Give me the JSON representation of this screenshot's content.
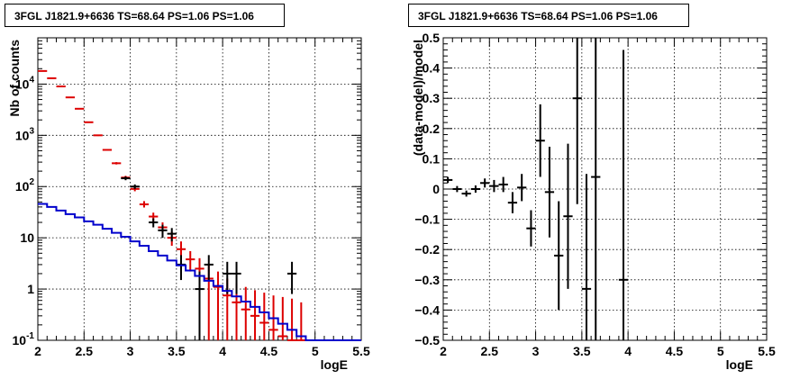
{
  "left_panel": {
    "title": "3FGL J1821.9+6636 TS=68.64 PS=1.06 PS=1.06"
  },
  "right_panel": {
    "title": "3FGL J1821.9+6636 TS=68.64 PS=1.06 PS=1.06"
  },
  "colors": {
    "data_black": "#000000",
    "data_red": "#dd0000",
    "model_blue": "#0000cc",
    "grid": "#000000"
  },
  "chart_data": [
    {
      "type": "scatter",
      "title": "3FGL J1821.9+6636 TS=68.64 PS=1.06 PS=1.06",
      "xlabel": "logE",
      "ylabel": "Nb of counts",
      "xlim": [
        2,
        5.5
      ],
      "ylim": [
        0.1,
        80000
      ],
      "log_y": true,
      "grid": true,
      "x_ticks": [
        "2",
        "2.5",
        "3",
        "3.5",
        "4",
        "4.5",
        "5",
        "5.5"
      ],
      "y_ticks": [
        "10⁻¹",
        "1",
        "10",
        "10²",
        "10³",
        "10⁴"
      ],
      "series": [
        {
          "color": "red",
          "style": "points_with_errors",
          "bin_half_width": 0.05,
          "points": [
            {
              "x": 2.05,
              "y": 18000,
              "lo": 17800,
              "hi": 18200
            },
            {
              "x": 2.15,
              "y": 13000,
              "lo": 12850,
              "hi": 13150
            },
            {
              "x": 2.25,
              "y": 9000,
              "lo": 8880,
              "hi": 9120
            },
            {
              "x": 2.35,
              "y": 5500,
              "lo": 5420,
              "hi": 5580
            },
            {
              "x": 2.45,
              "y": 3300,
              "lo": 3240,
              "hi": 3360
            },
            {
              "x": 2.55,
              "y": 1800,
              "lo": 1760,
              "hi": 1840
            },
            {
              "x": 2.65,
              "y": 1000,
              "lo": 970,
              "hi": 1030
            },
            {
              "x": 2.75,
              "y": 520,
              "lo": 500,
              "hi": 540
            },
            {
              "x": 2.85,
              "y": 285,
              "lo": 270,
              "hi": 300
            },
            {
              "x": 2.95,
              "y": 150,
              "lo": 138,
              "hi": 162
            },
            {
              "x": 3.05,
              "y": 90,
              "lo": 81,
              "hi": 99
            },
            {
              "x": 3.15,
              "y": 45,
              "lo": 39,
              "hi": 52
            },
            {
              "x": 3.25,
              "y": 26,
              "lo": 21,
              "hi": 31
            },
            {
              "x": 3.35,
              "y": 16,
              "lo": 12,
              "hi": 20
            },
            {
              "x": 3.45,
              "y": 10,
              "lo": 7,
              "hi": 13
            },
            {
              "x": 3.55,
              "y": 6,
              "lo": 3.8,
              "hi": 8.5
            },
            {
              "x": 3.65,
              "y": 3.8,
              "lo": 2.2,
              "hi": 5.5
            },
            {
              "x": 3.75,
              "y": 2.5,
              "lo": 1.2,
              "hi": 4
            },
            {
              "x": 3.85,
              "y": 1.6,
              "lo": 0.1,
              "hi": 2.9
            },
            {
              "x": 3.95,
              "y": 1.1,
              "lo": 0.1,
              "hi": 2.2
            },
            {
              "x": 4.05,
              "y": 0.75,
              "lo": 0.1,
              "hi": 1.6
            },
            {
              "x": 4.15,
              "y": 0.55,
              "lo": 0.1,
              "hi": 1.3
            },
            {
              "x": 4.25,
              "y": 0.4,
              "lo": 0.1,
              "hi": 1.1
            },
            {
              "x": 4.35,
              "y": 0.3,
              "lo": 0.1,
              "hi": 0.95
            },
            {
              "x": 4.45,
              "y": 0.22,
              "lo": 0.1,
              "hi": 0.85
            },
            {
              "x": 4.55,
              "y": 0.16,
              "lo": 0.1,
              "hi": 0.75
            },
            {
              "x": 4.65,
              "y": 0.12,
              "lo": 0.1,
              "hi": 0.7
            },
            {
              "x": 4.75,
              "y": 0.1,
              "lo": 0.1,
              "hi": 0.65
            },
            {
              "x": 4.85,
              "y": 0.1,
              "lo": 0.1,
              "hi": 0.55
            }
          ]
        },
        {
          "color": "black",
          "style": "points_with_errors",
          "bin_half_width": 0.05,
          "points": [
            {
              "x": 2.95,
              "y": 145,
              "lo": 133,
              "hi": 157
            },
            {
              "x": 3.05,
              "y": 100,
              "lo": 90,
              "hi": 110
            },
            {
              "x": 3.25,
              "y": 20,
              "lo": 16,
              "hi": 24
            },
            {
              "x": 3.35,
              "y": 14,
              "lo": 10,
              "hi": 18
            },
            {
              "x": 3.45,
              "y": 12,
              "lo": 8.5,
              "hi": 15.5
            },
            {
              "x": 3.55,
              "y": 3,
              "lo": 1.5,
              "hi": 4.6
            },
            {
              "x": 3.75,
              "y": 1,
              "lo": 0.1,
              "hi": 2.2
            },
            {
              "x": 3.85,
              "y": 3,
              "lo": 1.5,
              "hi": 4.6
            },
            {
              "x": 4.05,
              "y": 2,
              "lo": 0.8,
              "hi": 3.4
            },
            {
              "x": 4.15,
              "y": 2,
              "lo": 0.8,
              "hi": 3.4
            },
            {
              "x": 4.75,
              "y": 2,
              "lo": 0.8,
              "hi": 3.4
            }
          ]
        },
        {
          "color": "blue",
          "style": "step",
          "bin_edges": [
            2.0,
            2.1,
            2.2,
            2.3,
            2.4,
            2.5,
            2.6,
            2.7,
            2.8,
            2.9,
            3.0,
            3.1,
            3.2,
            3.3,
            3.4,
            3.5,
            3.6,
            3.7,
            3.8,
            3.9,
            4.0,
            4.1,
            4.2,
            4.3,
            4.4,
            4.5,
            4.6,
            4.7,
            4.8,
            4.9,
            5.0,
            5.1,
            5.2,
            5.3,
            5.4,
            5.5
          ],
          "values": [
            46,
            40,
            34,
            29,
            25,
            21,
            18,
            15,
            12.5,
            10.5,
            8.5,
            7,
            5.5,
            4.5,
            3.6,
            2.9,
            2.3,
            1.8,
            1.45,
            1.15,
            0.92,
            0.72,
            0.57,
            0.45,
            0.35,
            0.27,
            0.21,
            0.16,
            0.12,
            0.1,
            0.1,
            0.1,
            0.1,
            0.1,
            0.1
          ]
        }
      ]
    },
    {
      "type": "scatter",
      "title": "3FGL J1821.9+6636 TS=68.64 PS=1.06 PS=1.06",
      "xlabel": "logE",
      "ylabel": "(data-model)/model",
      "xlim": [
        2,
        5.5
      ],
      "ylim": [
        -0.5,
        0.5
      ],
      "grid": true,
      "x_ticks": [
        "2",
        "2.5",
        "3",
        "3.5",
        "4",
        "4.5",
        "5",
        "5.5"
      ],
      "y_ticks": [
        "−0.5",
        "−0.4",
        "−0.3",
        "−0.2",
        "−0.1",
        "0",
        "0.1",
        "0.2",
        "0.3",
        "0.4",
        "0.5"
      ],
      "series": [
        {
          "color": "black",
          "style": "points_with_errors",
          "bin_half_width": 0.05,
          "points": [
            {
              "x": 2.05,
              "y": 0.03,
              "lo": 0.02,
              "hi": 0.04
            },
            {
              "x": 2.15,
              "y": 0.0,
              "lo": -0.01,
              "hi": 0.01
            },
            {
              "x": 2.25,
              "y": -0.015,
              "lo": -0.025,
              "hi": -0.005
            },
            {
              "x": 2.35,
              "y": 0.0,
              "lo": -0.012,
              "hi": 0.012
            },
            {
              "x": 2.45,
              "y": 0.02,
              "lo": 0.005,
              "hi": 0.035
            },
            {
              "x": 2.55,
              "y": 0.01,
              "lo": -0.01,
              "hi": 0.03
            },
            {
              "x": 2.65,
              "y": 0.015,
              "lo": -0.01,
              "hi": 0.04
            },
            {
              "x": 2.75,
              "y": -0.045,
              "lo": -0.08,
              "hi": -0.01
            },
            {
              "x": 2.85,
              "y": 0.005,
              "lo": -0.04,
              "hi": 0.05
            },
            {
              "x": 2.95,
              "y": -0.13,
              "lo": -0.19,
              "hi": -0.07
            },
            {
              "x": 3.05,
              "y": 0.16,
              "lo": 0.04,
              "hi": 0.28
            },
            {
              "x": 3.15,
              "y": -0.01,
              "lo": -0.16,
              "hi": 0.14
            },
            {
              "x": 3.25,
              "y": -0.22,
              "lo": -0.4,
              "hi": -0.04
            },
            {
              "x": 3.35,
              "y": -0.09,
              "lo": -0.33,
              "hi": 0.15
            },
            {
              "x": 3.45,
              "y": 0.3,
              "lo": -0.05,
              "hi": 0.65
            },
            {
              "x": 3.55,
              "y": -0.33,
              "lo": -0.5,
              "hi": 0.05
            },
            {
              "x": 3.65,
              "y": 0.04,
              "lo": -0.5,
              "hi": 0.65
            },
            {
              "x": 3.95,
              "y": -0.3,
              "lo": -0.5,
              "hi": 0.46
            }
          ]
        }
      ]
    }
  ]
}
